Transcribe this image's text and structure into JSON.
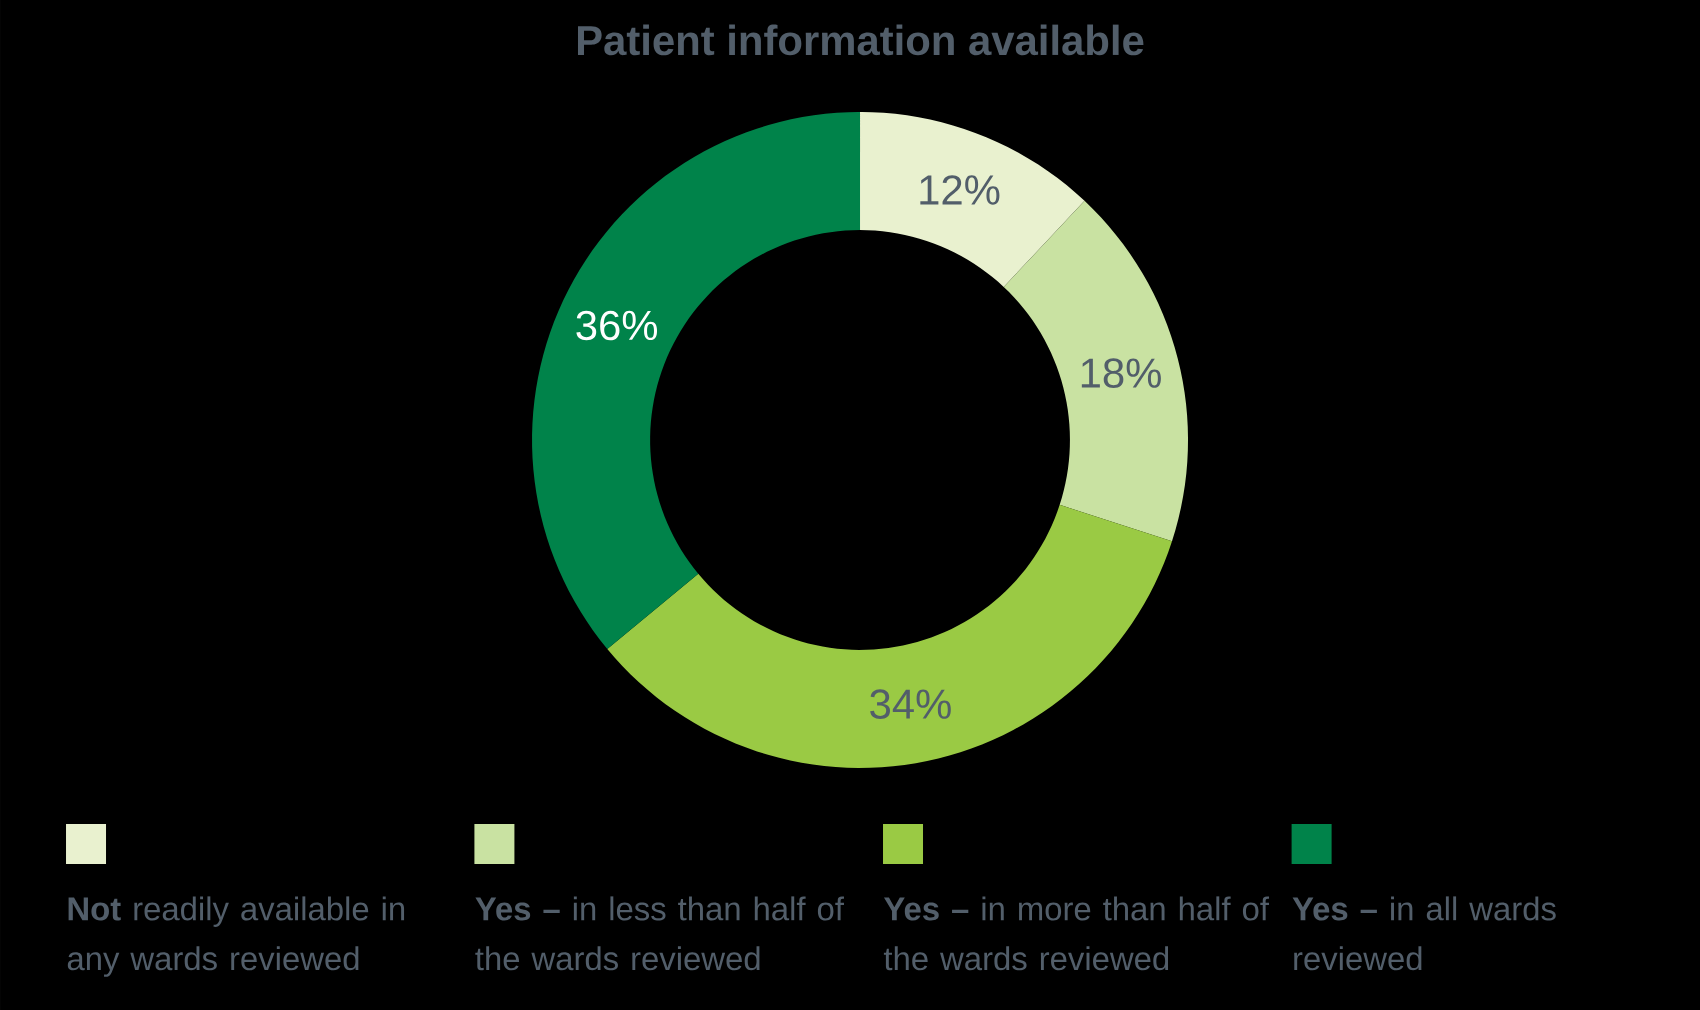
{
  "chart_data": {
    "type": "donut",
    "title": "Patient information available",
    "categories": [
      "**Not** readily available in any wards reviewed",
      "**Yes –** in less than half of the wards reviewed",
      "**Yes –** in more than half of the wards reviewed",
      "**Yes –** in all wards reviewed"
    ],
    "values": [
      12,
      18,
      34,
      36
    ],
    "value_labels": [
      "12%",
      "18%",
      "34%",
      "36%"
    ],
    "colors": [
      "#e9f1cf",
      "#c9e2a2",
      "#9aca44",
      "#00834a"
    ],
    "legend": "bottom"
  }
}
